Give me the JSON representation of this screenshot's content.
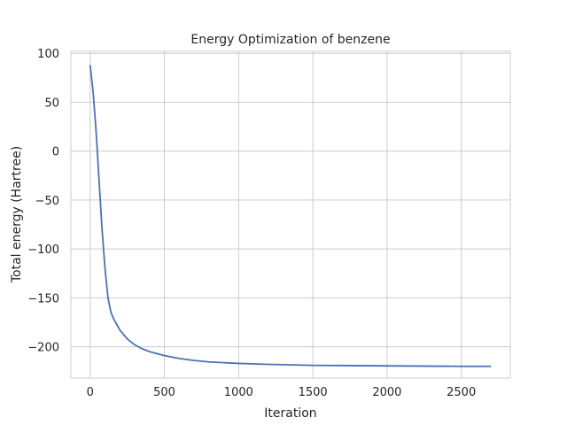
{
  "chart_data": {
    "type": "line",
    "title": "Energy Optimization of benzene",
    "xlabel": "Iteration",
    "ylabel": "Total energy (Hartree)",
    "xlim": [
      -130,
      2830
    ],
    "ylim": [
      -232,
      102
    ],
    "xticks": [
      0,
      500,
      1000,
      1500,
      2000,
      2500
    ],
    "xtick_labels": [
      "0",
      "500",
      "1000",
      "1500",
      "2000",
      "2500"
    ],
    "yticks": [
      100,
      50,
      0,
      -50,
      -100,
      -150,
      -200
    ],
    "ytick_labels": [
      "100",
      "50",
      "0",
      "−50",
      "−100",
      "−150",
      "−200"
    ],
    "grid": true,
    "series": [
      {
        "color": "#4c72b0",
        "x": [
          0,
          20,
          40,
          60,
          80,
          100,
          120,
          140,
          160,
          200,
          250,
          300,
          350,
          400,
          500,
          600,
          700,
          800,
          1000,
          1200,
          1500,
          2000,
          2500,
          2700
        ],
        "y": [
          88,
          60,
          20,
          -30,
          -80,
          -120,
          -150,
          -165,
          -172,
          -183,
          -192,
          -198,
          -202,
          -205,
          -209,
          -212,
          -214,
          -215.5,
          -217,
          -218,
          -219,
          -219.5,
          -220,
          -220
        ]
      }
    ]
  }
}
